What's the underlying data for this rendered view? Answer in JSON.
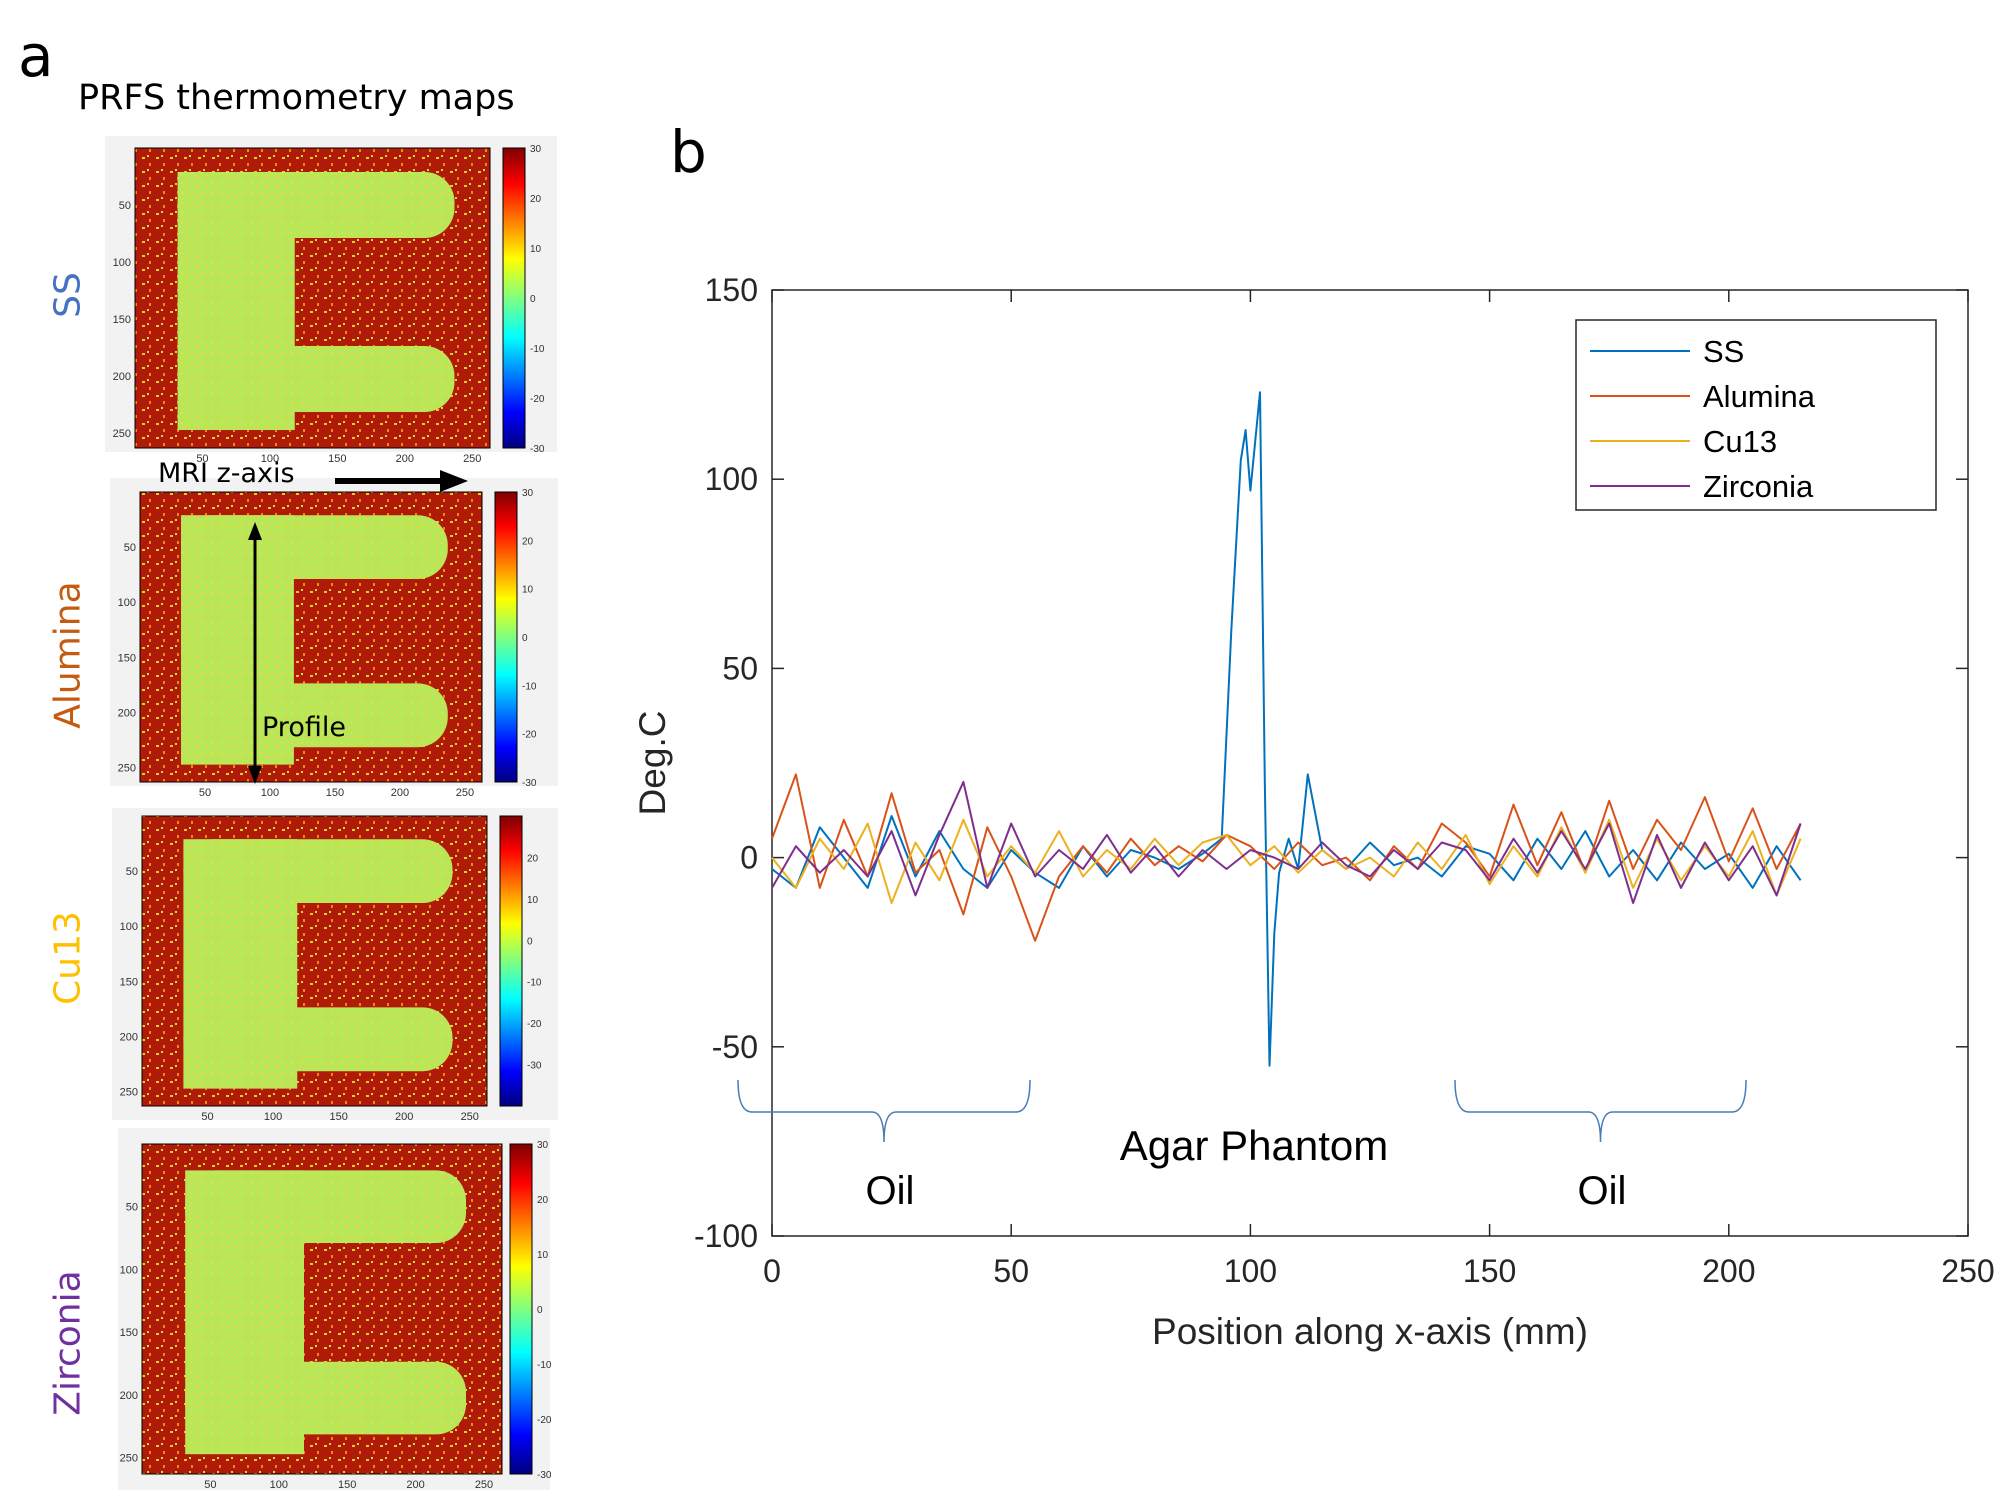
{
  "panel_a": {
    "letter": "a",
    "heading": "PRFS thermometry maps",
    "annotation_axis": "MRI z-axis",
    "annotation_profile": "Profile",
    "maps": [
      {
        "label": "SS",
        "color": "#4472c4",
        "yticks": [
          "50",
          "100",
          "150",
          "200",
          "250"
        ],
        "xticks": [
          "50",
          "100",
          "150",
          "200",
          "250"
        ],
        "cbar_ticks": [
          "30",
          "20",
          "10",
          "0",
          "-10",
          "-20",
          "-30"
        ]
      },
      {
        "label": "Alumina",
        "color": "#c55a11",
        "yticks": [
          "50",
          "100",
          "150",
          "200",
          "250"
        ],
        "xticks": [
          "50",
          "100",
          "150",
          "200",
          "250"
        ],
        "cbar_ticks": [
          "30",
          "20",
          "10",
          "0",
          "-10",
          "-20",
          "-30"
        ]
      },
      {
        "label": "Cu13",
        "color": "#ffc000",
        "yticks": [
          "50",
          "100",
          "150",
          "200",
          "250"
        ],
        "xticks": [
          "50",
          "100",
          "150",
          "200",
          "250"
        ],
        "cbar_ticks": [
          "20",
          "10",
          "0",
          "-10",
          "-20",
          "-30"
        ]
      },
      {
        "label": "Zirconia",
        "color": "#7030a0",
        "yticks": [
          "50",
          "100",
          "150",
          "200",
          "250"
        ],
        "xticks": [
          "50",
          "100",
          "150",
          "200",
          "250"
        ],
        "cbar_ticks": [
          "30",
          "20",
          "10",
          "0",
          "-10",
          "-20",
          "-30"
        ]
      }
    ]
  },
  "panel_b": {
    "letter": "b",
    "annotations": {
      "oil_left": "Oil",
      "agar": "Agar Phantom",
      "oil_right": "Oil"
    }
  },
  "chart_data": {
    "type": "line",
    "title": "",
    "xlabel": "Position along x-axis (mm)",
    "ylabel": "Deg.C",
    "xlim": [
      0,
      250
    ],
    "ylim": [
      -100,
      150
    ],
    "xticks": [
      0,
      50,
      100,
      150,
      200,
      250
    ],
    "yticks": [
      -100,
      -50,
      0,
      50,
      100,
      150
    ],
    "grid": false,
    "legend_position": "top-right",
    "series": [
      {
        "name": "SS",
        "color": "#0072bd",
        "x": [
          0,
          5,
          10,
          15,
          20,
          25,
          30,
          35,
          40,
          45,
          50,
          55,
          60,
          65,
          70,
          75,
          80,
          85,
          90,
          94,
          96,
          98,
          99,
          100,
          102,
          103,
          104,
          105,
          106,
          108,
          110,
          112,
          115,
          120,
          125,
          130,
          135,
          140,
          145,
          150,
          155,
          160,
          165,
          170,
          175,
          180,
          185,
          190,
          195,
          200,
          205,
          210,
          215
        ],
        "y": [
          -3,
          -8,
          8,
          0,
          -8,
          11,
          -5,
          7,
          -3,
          -8,
          2,
          -4,
          -8,
          3,
          -5,
          2,
          0,
          -3,
          1,
          5,
          60,
          105,
          113,
          97,
          123,
          20,
          -55,
          -20,
          -4,
          5,
          -3,
          22,
          2,
          -3,
          4,
          -2,
          0,
          -5,
          3,
          1,
          -6,
          5,
          -3,
          7,
          -5,
          2,
          -6,
          4,
          -3,
          1,
          -8,
          3,
          -6
        ]
      },
      {
        "name": "Alumina",
        "color": "#d95319",
        "x": [
          0,
          5,
          10,
          15,
          20,
          25,
          30,
          35,
          40,
          45,
          50,
          55,
          60,
          65,
          70,
          75,
          80,
          85,
          90,
          95,
          100,
          105,
          110,
          115,
          120,
          125,
          130,
          135,
          140,
          145,
          150,
          155,
          160,
          165,
          170,
          175,
          180,
          185,
          190,
          195,
          200,
          205,
          210,
          215
        ],
        "y": [
          5,
          22,
          -8,
          10,
          -5,
          17,
          -4,
          2,
          -15,
          8,
          -5,
          -22,
          -5,
          3,
          -4,
          5,
          -2,
          3,
          -1,
          6,
          3,
          -3,
          4,
          -2,
          0,
          -6,
          3,
          -3,
          9,
          4,
          -5,
          14,
          -2,
          12,
          -4,
          15,
          -3,
          10,
          2,
          16,
          -1,
          13,
          -3,
          9
        ]
      },
      {
        "name": "Cu13",
        "color": "#edb120",
        "x": [
          0,
          5,
          10,
          15,
          20,
          25,
          30,
          35,
          40,
          45,
          50,
          55,
          60,
          65,
          70,
          75,
          80,
          85,
          90,
          95,
          100,
          105,
          110,
          115,
          120,
          125,
          130,
          135,
          140,
          145,
          150,
          155,
          160,
          165,
          170,
          175,
          180,
          185,
          190,
          195,
          200,
          205,
          210,
          215
        ],
        "y": [
          0,
          -8,
          5,
          -3,
          9,
          -12,
          4,
          -6,
          10,
          -5,
          3,
          -4,
          7,
          -5,
          2,
          -3,
          5,
          -2,
          4,
          6,
          -2,
          3,
          -4,
          2,
          -3,
          0,
          -5,
          4,
          -3,
          6,
          -7,
          3,
          -5,
          8,
          -4,
          10,
          -8,
          5,
          -6,
          3,
          -5,
          7,
          -10,
          5
        ]
      },
      {
        "name": "Zirconia",
        "color": "#7e2f8e",
        "x": [
          0,
          5,
          10,
          15,
          20,
          25,
          30,
          35,
          40,
          45,
          50,
          55,
          60,
          65,
          70,
          75,
          80,
          85,
          90,
          95,
          100,
          105,
          110,
          115,
          120,
          125,
          130,
          135,
          140,
          145,
          150,
          155,
          160,
          165,
          170,
          175,
          180,
          185,
          190,
          195,
          200,
          205,
          210,
          215
        ],
        "y": [
          -8,
          3,
          -4,
          2,
          -5,
          7,
          -10,
          6,
          20,
          -8,
          9,
          -5,
          2,
          -3,
          6,
          -4,
          3,
          -5,
          2,
          -3,
          2,
          0,
          -3,
          4,
          -2,
          -5,
          2,
          -3,
          4,
          2,
          -6,
          5,
          -4,
          7,
          -3,
          9,
          -12,
          6,
          -8,
          4,
          -6,
          3,
          -10,
          9
        ]
      }
    ]
  }
}
